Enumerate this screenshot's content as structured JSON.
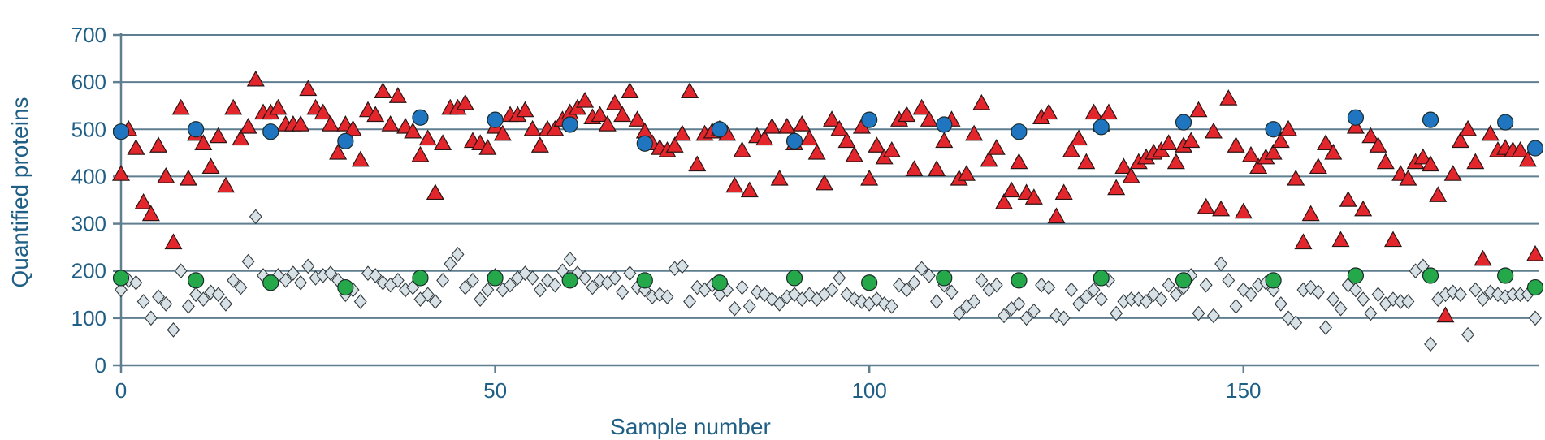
{
  "chart_data": {
    "type": "scatter",
    "title": "",
    "xlabel": "Sample number",
    "ylabel": "Quantified proteins",
    "xlim": [
      0,
      189
    ],
    "ylim": [
      0,
      700
    ],
    "x_ticks": [
      "0",
      "50",
      "100",
      "150"
    ],
    "y_ticks": [
      "0",
      "100",
      "200",
      "300",
      "400",
      "500",
      "600",
      "700"
    ],
    "grid": "horizontal",
    "legend": "none",
    "colors": {
      "axis": "#5f7f90",
      "text": "#1f5f86",
      "red": "#e3262b",
      "blue": "#1f75bf",
      "green": "#24a84a",
      "gray": "#d8e2e6"
    },
    "series": [
      {
        "marker": "triangle",
        "color": "#e3262b",
        "x": [
          0,
          1,
          2,
          3,
          4,
          5,
          6,
          7,
          8,
          9,
          10,
          11,
          12,
          13,
          14,
          15,
          16,
          17,
          18,
          19,
          20,
          21,
          22,
          23,
          24,
          25,
          26,
          27,
          28,
          29,
          30,
          31,
          32,
          33,
          34,
          35,
          36,
          37,
          38,
          39,
          40,
          41,
          42,
          43,
          44,
          45,
          46,
          47,
          48,
          49,
          50,
          51,
          52,
          53,
          54,
          55,
          56,
          57,
          58,
          59,
          60,
          61,
          62,
          63,
          64,
          65,
          66,
          67,
          68,
          69,
          70,
          71,
          72,
          73,
          74,
          75,
          76,
          77,
          78,
          79,
          80,
          81,
          82,
          83,
          84,
          85,
          86,
          87,
          88,
          89,
          90,
          91,
          92,
          93,
          94,
          95,
          96,
          97,
          98,
          99,
          100,
          101,
          102,
          103,
          104,
          105,
          106,
          107,
          108,
          109,
          110,
          111,
          112,
          113,
          114,
          115,
          116,
          117,
          118,
          119,
          120,
          121,
          122,
          123,
          124,
          125,
          126,
          127,
          128,
          129,
          130,
          131,
          132,
          133,
          134,
          135,
          136,
          137,
          138,
          139,
          140,
          141,
          142,
          143,
          144,
          145,
          146,
          147,
          148,
          149,
          150,
          151,
          152,
          153,
          154,
          155,
          156,
          157,
          158,
          159,
          160,
          161,
          162,
          163,
          164,
          165,
          166,
          167,
          168,
          169,
          170,
          171,
          172,
          173,
          174,
          175,
          176,
          177,
          178,
          179,
          180,
          181,
          182,
          183,
          184,
          185,
          186,
          187,
          188,
          189
        ],
        "y": [
          405,
          500,
          460,
          345,
          320,
          465,
          400,
          260,
          545,
          395,
          490,
          470,
          420,
          485,
          380,
          545,
          480,
          505,
          605,
          535,
          535,
          545,
          510,
          510,
          510,
          585,
          545,
          535,
          510,
          450,
          510,
          500,
          435,
          540,
          530,
          580,
          510,
          570,
          505,
          495,
          445,
          480,
          365,
          470,
          545,
          545,
          555,
          475,
          470,
          460,
          505,
          490,
          530,
          530,
          540,
          500,
          465,
          500,
          500,
          520,
          535,
          545,
          560,
          525,
          530,
          510,
          555,
          530,
          580,
          520,
          495,
          470,
          460,
          455,
          465,
          490,
          580,
          425,
          490,
          495,
          500,
          490,
          380,
          455,
          370,
          485,
          480,
          505,
          395,
          505,
          470,
          510,
          480,
          450,
          385,
          520,
          500,
          475,
          445,
          505,
          395,
          465,
          440,
          455,
          520,
          530,
          415,
          545,
          520,
          415,
          475,
          520,
          395,
          405,
          490,
          555,
          435,
          460,
          345,
          370,
          430,
          365,
          355,
          525,
          535,
          315,
          365,
          455,
          480,
          430,
          535,
          510,
          535,
          375,
          420,
          400,
          430,
          440,
          450,
          455,
          470,
          430,
          465,
          475,
          540,
          335,
          495,
          330,
          565,
          465,
          325,
          445,
          420,
          440,
          450,
          475,
          500,
          395,
          260,
          320,
          420,
          470,
          450,
          265,
          350,
          505,
          330,
          485,
          465,
          430,
          265,
          405,
          395,
          430,
          440,
          425,
          360,
          105,
          405,
          475,
          500,
          430,
          225,
          490,
          455,
          460,
          455,
          455,
          435,
          235
        ]
      },
      {
        "marker": "circle",
        "color": "#1f75bf",
        "x": [
          0,
          10,
          20,
          30,
          40,
          50,
          60,
          70,
          80,
          90,
          100,
          110,
          120,
          131,
          142,
          154,
          165,
          175,
          185,
          189
        ],
        "y": [
          495,
          500,
          495,
          475,
          525,
          520,
          510,
          470,
          500,
          475,
          520,
          510,
          495,
          505,
          515,
          500,
          525,
          520,
          515,
          460
        ]
      },
      {
        "marker": "circle",
        "color": "#24a84a",
        "x": [
          0,
          10,
          20,
          30,
          40,
          50,
          60,
          70,
          80,
          90,
          100,
          110,
          120,
          131,
          142,
          154,
          165,
          175,
          185,
          189
        ],
        "y": [
          185,
          180,
          175,
          165,
          185,
          185,
          180,
          180,
          175,
          185,
          175,
          185,
          180,
          185,
          180,
          180,
          190,
          190,
          190,
          165
        ]
      },
      {
        "marker": "diamond",
        "color": "#d8e2e6",
        "x": [
          0,
          1,
          2,
          3,
          4,
          5,
          6,
          7,
          8,
          9,
          10,
          11,
          12,
          13,
          14,
          15,
          16,
          17,
          18,
          19,
          20,
          21,
          22,
          23,
          24,
          25,
          26,
          27,
          28,
          29,
          30,
          31,
          32,
          33,
          34,
          35,
          36,
          37,
          38,
          39,
          40,
          41,
          42,
          43,
          44,
          45,
          46,
          47,
          48,
          49,
          50,
          51,
          52,
          53,
          54,
          55,
          56,
          57,
          58,
          59,
          60,
          61,
          62,
          63,
          64,
          65,
          66,
          67,
          68,
          69,
          70,
          71,
          72,
          73,
          74,
          75,
          76,
          77,
          78,
          79,
          80,
          81,
          82,
          83,
          84,
          85,
          86,
          87,
          88,
          89,
          90,
          91,
          92,
          93,
          94,
          95,
          96,
          97,
          98,
          99,
          100,
          101,
          102,
          103,
          104,
          105,
          106,
          107,
          108,
          109,
          110,
          111,
          112,
          113,
          114,
          115,
          116,
          117,
          118,
          119,
          120,
          121,
          122,
          123,
          124,
          125,
          126,
          127,
          128,
          129,
          130,
          131,
          132,
          133,
          134,
          135,
          136,
          137,
          138,
          139,
          140,
          141,
          142,
          143,
          144,
          145,
          146,
          147,
          148,
          149,
          150,
          151,
          152,
          153,
          154,
          155,
          156,
          157,
          158,
          159,
          160,
          161,
          162,
          163,
          164,
          165,
          166,
          167,
          168,
          169,
          170,
          171,
          172,
          173,
          174,
          175,
          176,
          177,
          178,
          179,
          180,
          181,
          182,
          183,
          184,
          185,
          186,
          187,
          188,
          189
        ],
        "y": [
          160,
          180,
          175,
          135,
          100,
          145,
          130,
          75,
          200,
          125,
          150,
          140,
          155,
          150,
          130,
          180,
          165,
          220,
          315,
          190,
          175,
          190,
          180,
          195,
          175,
          210,
          185,
          190,
          195,
          180,
          150,
          160,
          135,
          195,
          190,
          175,
          170,
          180,
          160,
          165,
          140,
          150,
          135,
          180,
          215,
          235,
          165,
          180,
          140,
          160,
          190,
          160,
          170,
          185,
          195,
          185,
          160,
          180,
          170,
          200,
          225,
          195,
          185,
          165,
          180,
          175,
          185,
          155,
          195,
          165,
          160,
          145,
          150,
          145,
          205,
          210,
          135,
          165,
          160,
          170,
          150,
          160,
          120,
          165,
          125,
          155,
          150,
          140,
          130,
          145,
          150,
          140,
          150,
          140,
          150,
          160,
          185,
          150,
          140,
          135,
          130,
          140,
          130,
          125,
          170,
          160,
          175,
          205,
          190,
          135,
          170,
          155,
          110,
          125,
          135,
          180,
          160,
          170,
          105,
          120,
          130,
          100,
          115,
          170,
          165,
          105,
          100,
          160,
          130,
          145,
          160,
          140,
          180,
          110,
          135,
          140,
          140,
          135,
          150,
          140,
          170,
          150,
          165,
          190,
          110,
          170,
          105,
          215,
          180,
          125,
          160,
          150,
          170,
          175,
          160,
          130,
          100,
          90,
          160,
          165,
          155,
          80,
          140,
          120,
          170,
          160,
          140,
          110,
          150,
          130,
          140,
          135,
          135,
          200,
          210,
          45,
          140,
          150,
          155,
          150,
          65,
          160,
          140,
          155,
          150,
          145,
          150,
          150,
          150,
          100
        ]
      }
    ]
  }
}
